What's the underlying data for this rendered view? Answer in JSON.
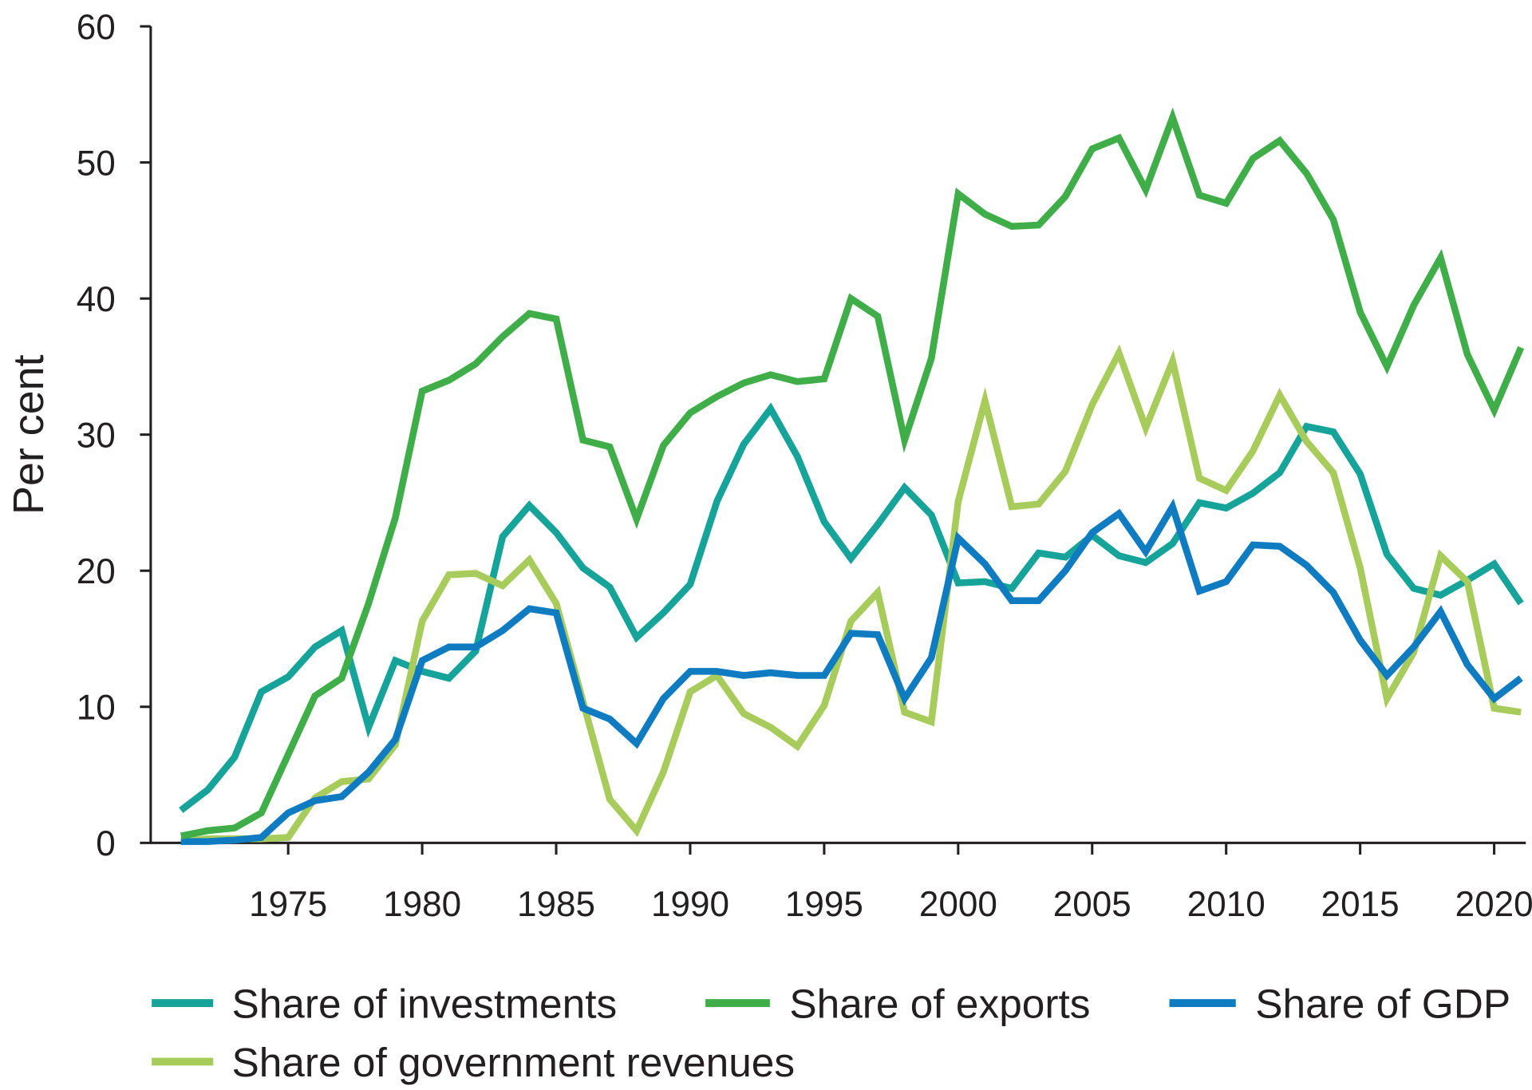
{
  "chart_data": {
    "type": "line",
    "title": "",
    "xlabel": "",
    "ylabel": "Per cent",
    "xlim": [
      1971,
      2021
    ],
    "ylim": [
      0,
      60
    ],
    "yticks": [
      0,
      10,
      20,
      30,
      40,
      50,
      60
    ],
    "xticks": [
      1975,
      1980,
      1985,
      1990,
      1995,
      2000,
      2005,
      2010,
      2015,
      2020
    ],
    "grid": false,
    "legend_position": "bottom",
    "x": [
      1971,
      1972,
      1973,
      1974,
      1975,
      1976,
      1977,
      1978,
      1979,
      1980,
      1981,
      1982,
      1983,
      1984,
      1985,
      1986,
      1987,
      1988,
      1989,
      1990,
      1991,
      1992,
      1993,
      1994,
      1995,
      1996,
      1997,
      1998,
      1999,
      2000,
      2001,
      2002,
      2003,
      2004,
      2005,
      2006,
      2007,
      2008,
      2009,
      2010,
      2011,
      2012,
      2013,
      2014,
      2015,
      2016,
      2017,
      2018,
      2019,
      2020,
      2021
    ],
    "series": [
      {
        "name": "Share of investments",
        "color": "#16a39a",
        "values": [
          2.4,
          3.9,
          6.3,
          11.1,
          12.2,
          14.4,
          15.6,
          8.5,
          13.4,
          12.6,
          12.1,
          14.1,
          22.5,
          24.8,
          22.8,
          20.2,
          18.8,
          15.1,
          16.9,
          19.0,
          25.1,
          29.3,
          31.9,
          28.4,
          23.6,
          20.9,
          23.4,
          26.1,
          24.1,
          19.1,
          19.2,
          18.7,
          21.3,
          21.0,
          22.6,
          21.1,
          20.6,
          22.0,
          25.0,
          24.6,
          25.7,
          27.2,
          30.6,
          30.2,
          27.1,
          21.2,
          18.7,
          18.2,
          19.3,
          20.5,
          17.6
        ]
      },
      {
        "name": "Share of exports",
        "color": "#3fae49",
        "values": [
          0.5,
          0.9,
          1.1,
          2.2,
          6.5,
          10.8,
          12.1,
          17.6,
          23.9,
          33.2,
          34.0,
          35.2,
          37.2,
          38.9,
          38.5,
          29.6,
          29.1,
          23.8,
          29.2,
          31.6,
          32.8,
          33.8,
          34.4,
          33.9,
          34.1,
          40.0,
          38.7,
          29.6,
          35.6,
          47.7,
          46.2,
          45.3,
          45.4,
          47.5,
          51.0,
          51.8,
          48.0,
          53.3,
          47.6,
          47.0,
          50.3,
          51.6,
          49.2,
          45.8,
          39.0,
          35.0,
          39.5,
          43.0,
          35.9,
          31.8,
          36.4
        ]
      },
      {
        "name": "Share of GDP",
        "color": "#0f7bc1",
        "values": [
          0.1,
          0.1,
          0.2,
          0.4,
          2.2,
          3.1,
          3.4,
          5.2,
          7.6,
          13.4,
          14.4,
          14.4,
          15.6,
          17.2,
          16.9,
          9.9,
          9.1,
          7.3,
          10.6,
          12.6,
          12.6,
          12.3,
          12.5,
          12.3,
          12.3,
          15.4,
          15.3,
          10.6,
          13.6,
          22.4,
          20.5,
          17.8,
          17.8,
          20.0,
          22.8,
          24.2,
          21.4,
          24.7,
          18.5,
          19.2,
          21.9,
          21.8,
          20.4,
          18.4,
          14.9,
          12.3,
          14.4,
          17.0,
          13.1,
          10.6,
          12.1
        ]
      },
      {
        "name": "Share of government revenues",
        "color": "#a8cc5b",
        "values": [
          0.1,
          0.3,
          0.3,
          0.3,
          0.4,
          3.3,
          4.5,
          4.7,
          7.2,
          16.3,
          19.7,
          19.8,
          18.9,
          20.8,
          17.6,
          10.4,
          3.2,
          0.9,
          5.2,
          11.1,
          12.3,
          9.5,
          8.5,
          7.1,
          10.1,
          16.3,
          18.4,
          9.6,
          8.9,
          25.1,
          32.5,
          24.7,
          24.9,
          27.3,
          32.2,
          36.0,
          30.5,
          35.4,
          26.8,
          25.9,
          28.8,
          32.9,
          29.5,
          27.2,
          20.2,
          10.6,
          14.0,
          21.1,
          19.2,
          9.9,
          9.6
        ]
      }
    ]
  }
}
